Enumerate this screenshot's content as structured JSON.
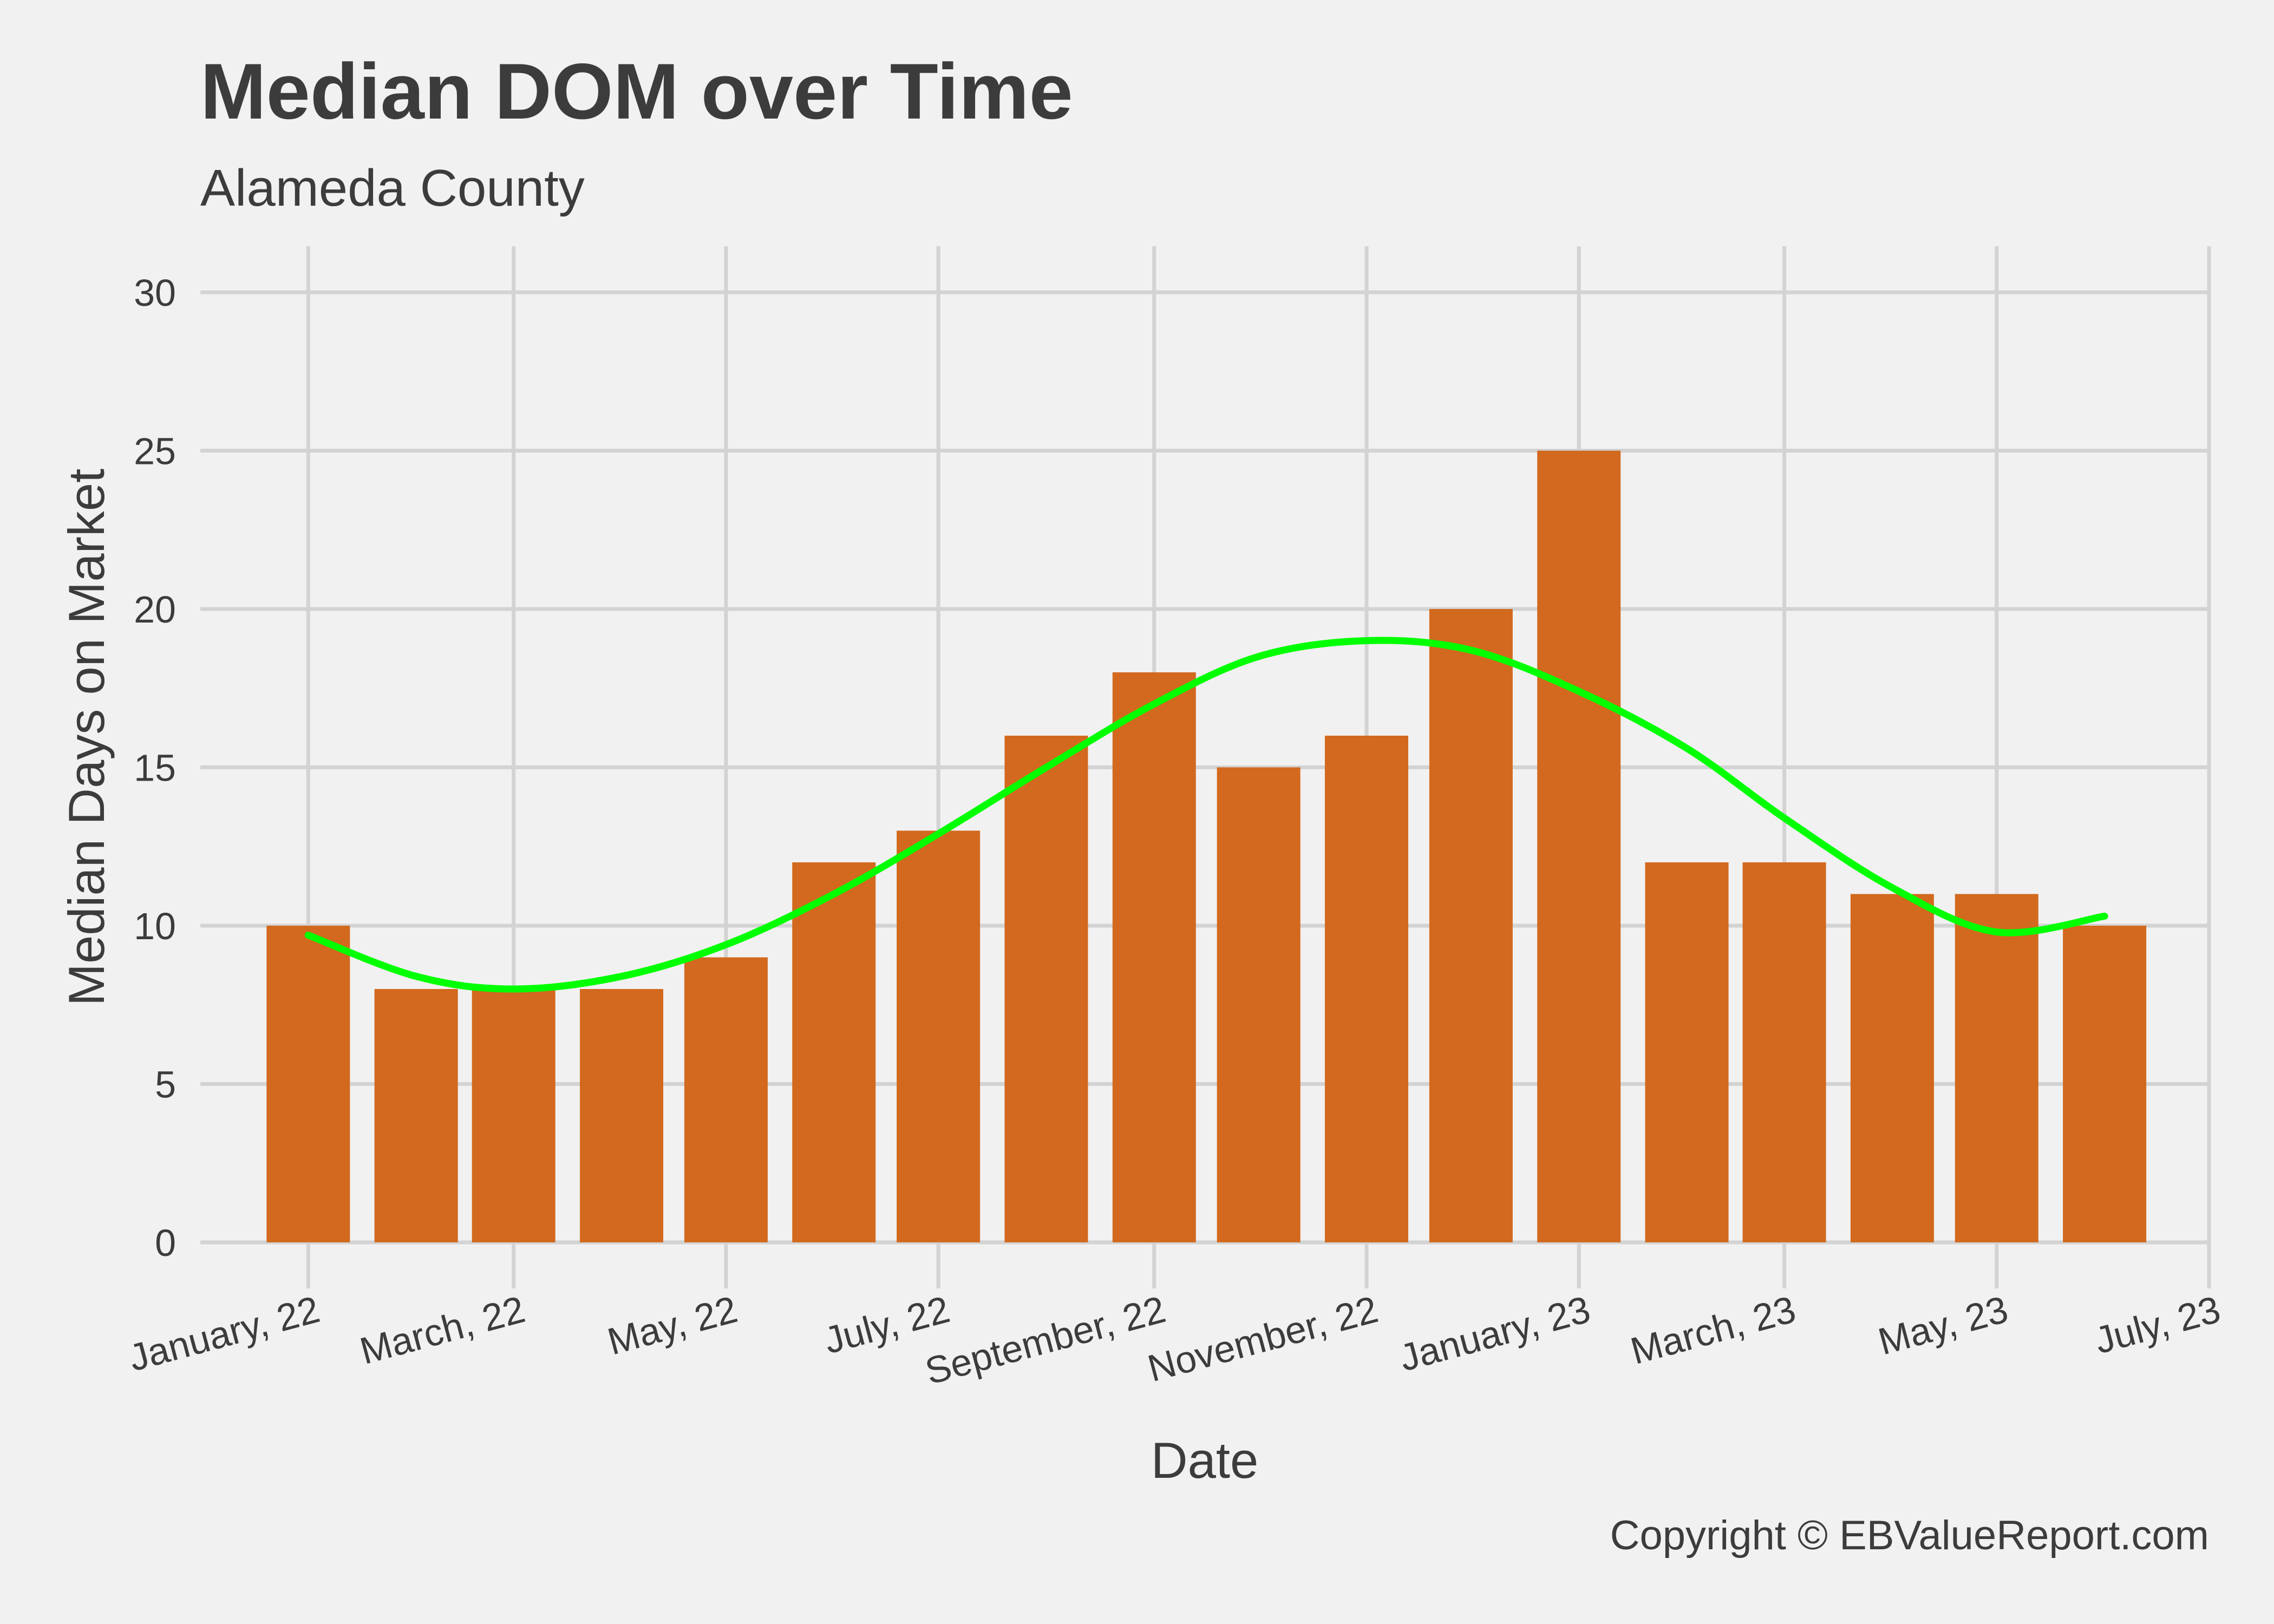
{
  "chart_data": {
    "type": "bar",
    "title": "Median DOM over Time",
    "subtitle": "Alameda County",
    "xlabel": "Date",
    "ylabel": "Median Days on Market",
    "caption": "Copyright  © EBValueReport.com",
    "ylim": [
      0,
      30
    ],
    "y_ticks": [
      0,
      5,
      10,
      15,
      20,
      25,
      30
    ],
    "x_ticks": [
      {
        "date": "2022-01-01",
        "label": "January, 22"
      },
      {
        "date": "2022-03-01",
        "label": "March, 22"
      },
      {
        "date": "2022-05-01",
        "label": "May, 22"
      },
      {
        "date": "2022-07-01",
        "label": "July, 22"
      },
      {
        "date": "2022-09-01",
        "label": "September, 22"
      },
      {
        "date": "2022-11-01",
        "label": "November, 22"
      },
      {
        "date": "2023-01-01",
        "label": "January, 23"
      },
      {
        "date": "2023-03-01",
        "label": "March, 23"
      },
      {
        "date": "2023-05-01",
        "label": "May, 23"
      },
      {
        "date": "2023-07-01",
        "label": "July, 23"
      }
    ],
    "xlim": [
      "2021-12-01",
      "2023-07-01"
    ],
    "grid": true,
    "bar_color": "#d2691e",
    "trend_color": "#00ff00",
    "series": [
      {
        "dates": [
          "2022-01-01",
          "2022-02-01",
          "2022-03-01",
          "2022-04-01",
          "2022-05-01",
          "2022-06-01",
          "2022-07-01",
          "2022-08-01",
          "2022-09-01",
          "2022-10-01",
          "2022-11-01",
          "2022-12-01",
          "2023-01-01",
          "2023-02-01",
          "2023-03-01",
          "2023-04-01",
          "2023-05-01",
          "2023-06-01"
        ],
        "values": [
          10,
          8,
          8,
          8,
          9,
          12,
          13,
          16,
          18,
          15,
          16,
          20,
          25,
          12,
          12,
          11,
          11,
          10
        ]
      }
    ],
    "trend": {
      "dates": [
        "2022-01-01",
        "2022-02-01",
        "2022-03-01",
        "2022-04-01",
        "2022-05-01",
        "2022-06-01",
        "2022-07-01",
        "2022-08-01",
        "2022-09-01",
        "2022-10-01",
        "2022-11-01",
        "2022-12-01",
        "2023-01-01",
        "2023-02-01",
        "2023-03-01",
        "2023-04-01",
        "2023-05-01",
        "2023-06-01"
      ],
      "values": [
        9.7,
        8.4,
        8.0,
        8.4,
        9.4,
        11.0,
        12.9,
        15.0,
        17.0,
        18.5,
        19.0,
        18.7,
        17.4,
        15.6,
        13.4,
        11.2,
        9.8,
        10.3
      ]
    }
  }
}
